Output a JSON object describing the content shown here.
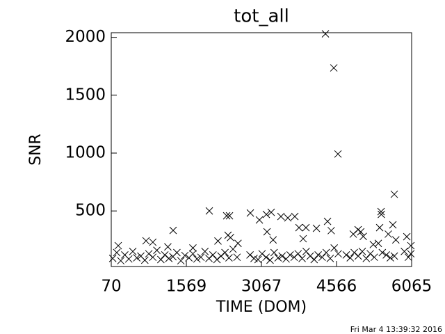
{
  "chart_data": {
    "type": "scatter",
    "title": "tot_all",
    "x_label": "TIME (DOM)",
    "y_label": "SNR",
    "timestamp": "Fri Mar  4 13:39:32 2016",
    "color": "#000000",
    "xlim": [
      70,
      6065
    ],
    "xticks": [
      70,
      1569,
      3067,
      4566,
      6065
    ],
    "ylim": [
      20,
      2040
    ],
    "yticks": [
      500,
      1000,
      1500,
      2000
    ],
    "x": [
      100,
      180,
      260,
      340,
      420,
      500,
      580,
      660,
      740,
      820,
      900,
      980,
      1060,
      1140,
      1220,
      1300,
      1380,
      1460,
      1540,
      1620,
      1700,
      1780,
      1860,
      1940,
      2020,
      2100,
      2180,
      2260,
      2340,
      2420,
      2500,
      2580,
      2840,
      2920,
      3000,
      3080,
      3160,
      3240,
      3320,
      3400,
      3480,
      3560,
      3640,
      3720,
      3800,
      3880,
      3960,
      4040,
      4120,
      4200,
      4280,
      4360,
      4440,
      4520,
      4600,
      4760,
      4840,
      4920,
      5000,
      5080,
      5160,
      5240,
      5320,
      5400,
      5480,
      5560,
      5640,
      5720,
      5920,
      6000,
      6050,
      4345,
      4512,
      4595,
      5719,
      2027,
      2374,
      2430,
      2846,
      3027,
      3165,
      3262,
      3457,
      3595,
      3734,
      4387,
      5455,
      5460,
      5691,
      1305,
      3179,
      3817,
      3956,
      4165,
      4997,
      5050,
      5427,
      5969,
      209,
      764,
      900,
      1200,
      1700,
      2200,
      2400,
      2450,
      2600,
      3300,
      3900,
      4460,
      4900,
      5100,
      5300,
      5600,
      5750,
      6050
    ],
    "y": [
      90,
      140,
      70,
      120,
      85,
      150,
      95,
      110,
      75,
      130,
      100,
      160,
      80,
      120,
      90,
      105,
      140,
      70,
      115,
      95,
      130,
      85,
      100,
      150,
      90,
      120,
      80,
      110,
      140,
      95,
      170,
      100,
      120,
      90,
      80,
      130,
      100,
      75,
      140,
      95,
      110,
      85,
      120,
      100,
      130,
      90,
      150,
      110,
      80,
      120,
      100,
      140,
      90,
      180,
      130,
      120,
      95,
      140,
      110,
      150,
      90,
      130,
      100,
      220,
      140,
      120,
      95,
      110,
      150,
      100,
      130,
      2030,
      1736,
      992,
      644,
      500,
      458,
      458,
      482,
      422,
      470,
      488,
      452,
      440,
      452,
      410,
      494,
      470,
      380,
      332,
      320,
      356,
      356,
      350,
      338,
      320,
      356,
      278,
      200,
      242,
      230,
      190,
      180,
      240,
      290,
      270,
      220,
      250,
      260,
      330,
      300,
      280,
      210,
      300,
      250,
      200
    ]
  }
}
